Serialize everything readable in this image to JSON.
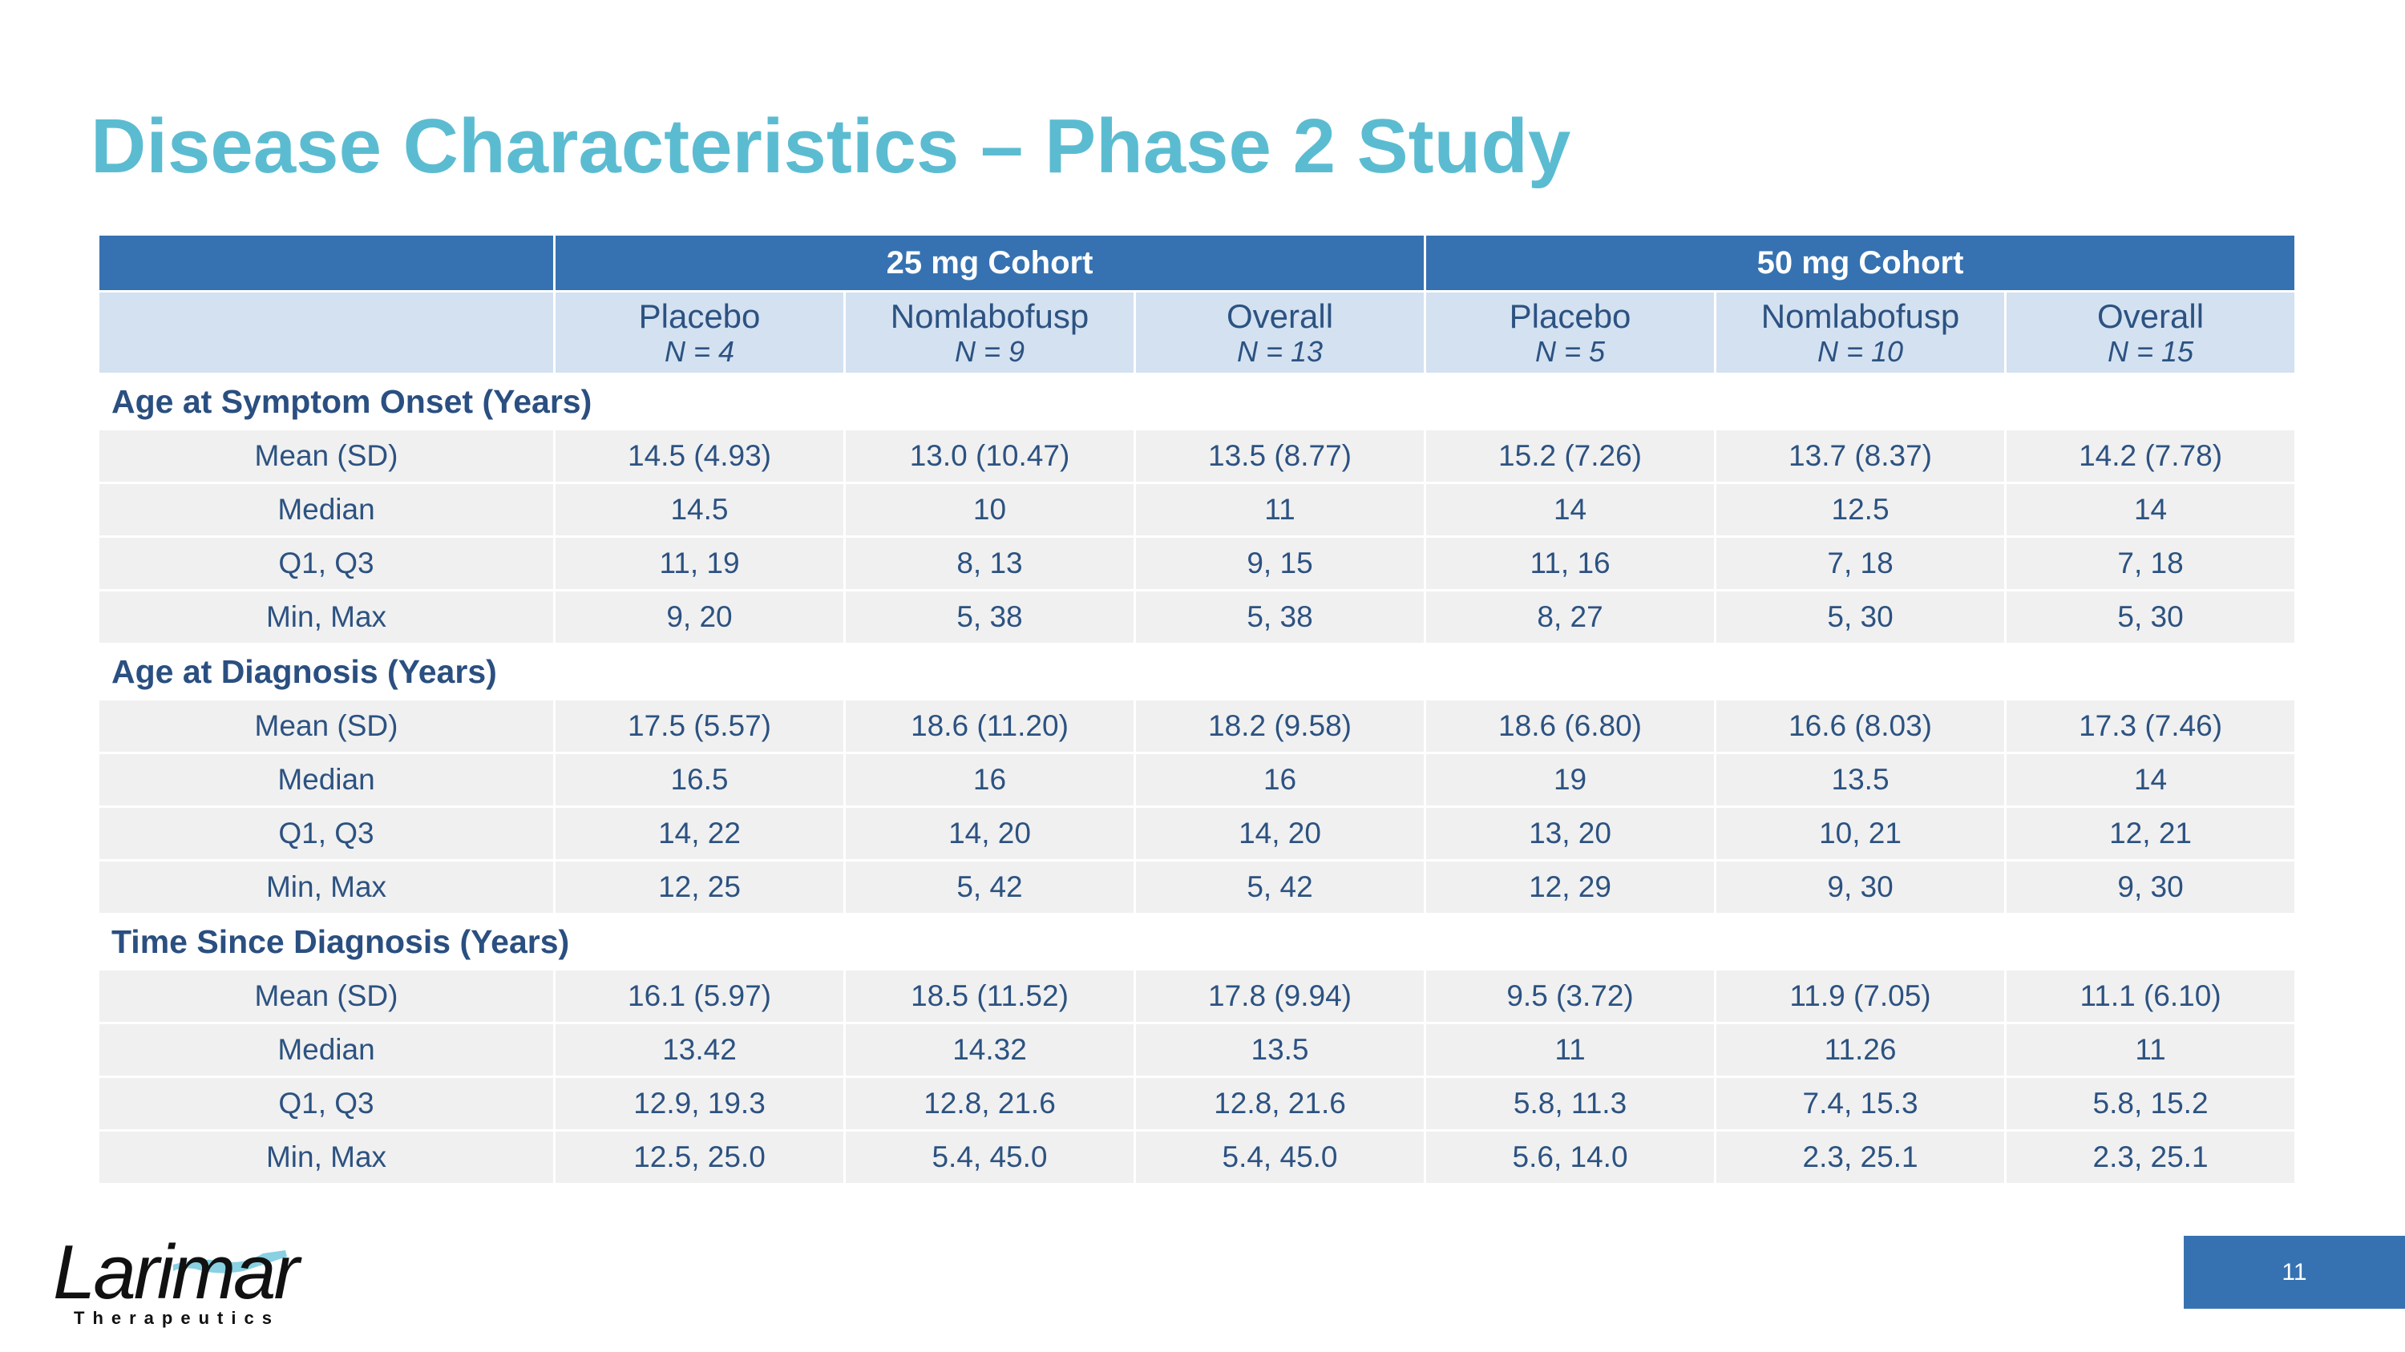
{
  "title": "Disease Characteristics – Phase 2 Study",
  "table": {
    "cohorts": [
      {
        "label": "25 mg Cohort"
      },
      {
        "label": "50 mg Cohort"
      }
    ],
    "columns": [
      {
        "label": "Placebo",
        "n": "N = 4"
      },
      {
        "label": "Nomlabofusp",
        "n": "N = 9"
      },
      {
        "label": "Overall",
        "n": "N = 13"
      },
      {
        "label": "Placebo",
        "n": "N = 5"
      },
      {
        "label": "Nomlabofusp",
        "n": "N = 10"
      },
      {
        "label": "Overall",
        "n": "N = 15"
      }
    ],
    "sections": [
      {
        "title": "Age at Symptom Onset (Years)",
        "rows": [
          {
            "label": "Mean (SD)",
            "values": [
              "14.5 (4.93)",
              "13.0 (10.47)",
              "13.5 (8.77)",
              "15.2 (7.26)",
              "13.7 (8.37)",
              "14.2 (7.78)"
            ]
          },
          {
            "label": "Median",
            "values": [
              "14.5",
              "10",
              "11",
              "14",
              "12.5",
              "14"
            ]
          },
          {
            "label": "Q1, Q3",
            "values": [
              "11, 19",
              "8, 13",
              "9, 15",
              "11, 16",
              "7, 18",
              "7, 18"
            ]
          },
          {
            "label": "Min, Max",
            "values": [
              "9, 20",
              "5, 38",
              "5, 38",
              "8, 27",
              "5, 30",
              "5, 30"
            ]
          }
        ]
      },
      {
        "title": "Age at Diagnosis (Years)",
        "rows": [
          {
            "label": "Mean (SD)",
            "values": [
              "17.5 (5.57)",
              "18.6 (11.20)",
              "18.2 (9.58)",
              "18.6 (6.80)",
              "16.6 (8.03)",
              "17.3 (7.46)"
            ]
          },
          {
            "label": "Median",
            "values": [
              "16.5",
              "16",
              "16",
              "19",
              "13.5",
              "14"
            ]
          },
          {
            "label": "Q1, Q3",
            "values": [
              "14, 22",
              "14, 20",
              "14, 20",
              "13, 20",
              "10, 21",
              "12, 21"
            ]
          },
          {
            "label": "Min, Max",
            "values": [
              "12, 25",
              "5, 42",
              "5, 42",
              "12, 29",
              "9, 30",
              "9, 30"
            ]
          }
        ]
      },
      {
        "title": "Time Since Diagnosis (Years)",
        "rows": [
          {
            "label": "Mean (SD)",
            "values": [
              "16.1 (5.97)",
              "18.5 (11.52)",
              "17.8 (9.94)",
              "9.5 (3.72)",
              "11.9 (7.05)",
              "11.1 (6.10)"
            ]
          },
          {
            "label": "Median",
            "values": [
              "13.42",
              "14.32",
              "13.5",
              "11",
              "11.26",
              "11"
            ]
          },
          {
            "label": "Q1, Q3",
            "values": [
              "12.9, 19.3",
              "12.8, 21.6",
              "12.8, 21.6",
              "5.8, 11.3",
              "7.4, 15.3",
              "5.8, 15.2"
            ]
          },
          {
            "label": "Min, Max",
            "values": [
              "12.5, 25.0",
              "5.4, 45.0",
              "5.4, 45.0",
              "5.6, 14.0",
              "2.3, 25.1",
              "2.3, 25.1"
            ]
          }
        ]
      }
    ]
  },
  "logo": {
    "name": "Larimar",
    "tagline": "Therapeutics"
  },
  "page_number": "11",
  "colors": {
    "title": "#5bbcd1",
    "header_dark": "#3672b1",
    "header_light": "#d3e1f1",
    "row_bg": "#f0f0f0",
    "text": "#2c5281"
  }
}
